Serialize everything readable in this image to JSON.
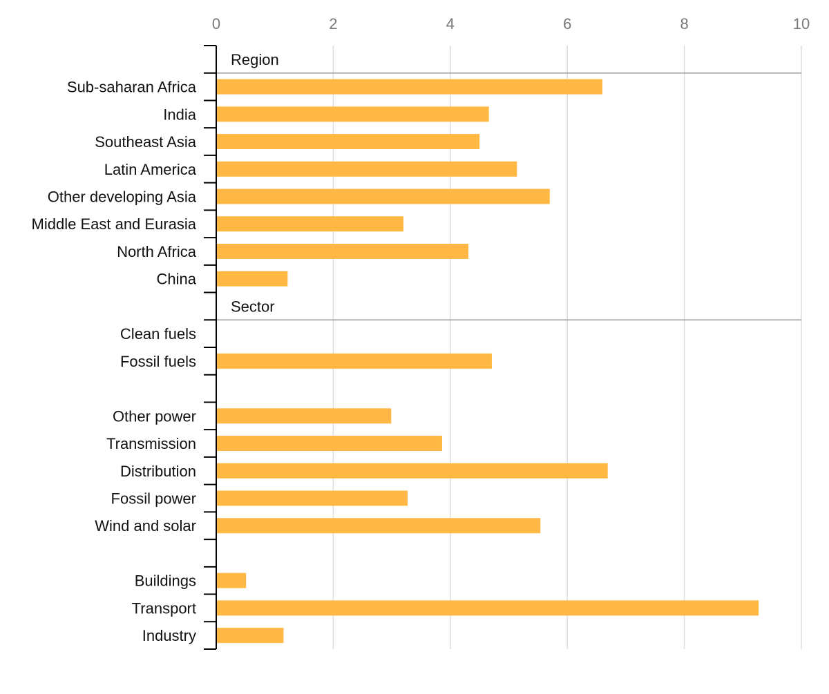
{
  "chart_data": {
    "type": "bar",
    "orientation": "horizontal",
    "title": "",
    "xlabel": "",
    "ylabel": "",
    "xlim": [
      0,
      10
    ],
    "x_ticks": [
      0,
      2,
      4,
      6,
      8,
      10
    ],
    "grid": true,
    "bar_color": "#FFB844",
    "rows": [
      {
        "kind": "header",
        "label": "Region"
      },
      {
        "kind": "bar",
        "label": "Sub-saharan Africa",
        "value": 6.6
      },
      {
        "kind": "bar",
        "label": "India",
        "value": 4.66
      },
      {
        "kind": "bar",
        "label": "Southeast Asia",
        "value": 4.5
      },
      {
        "kind": "bar",
        "label": "Latin America",
        "value": 5.14
      },
      {
        "kind": "bar",
        "label": "Other developing Asia",
        "value": 5.7
      },
      {
        "kind": "bar",
        "label": "Middle East and Eurasia",
        "value": 3.2
      },
      {
        "kind": "bar",
        "label": "North Africa",
        "value": 4.31
      },
      {
        "kind": "bar",
        "label": "China",
        "value": 1.22
      },
      {
        "kind": "header",
        "label": "Sector"
      },
      {
        "kind": "bar",
        "label": "Clean fuels",
        "value": 0
      },
      {
        "kind": "bar",
        "label": "Fossil fuels",
        "value": 4.71
      },
      {
        "kind": "blank"
      },
      {
        "kind": "bar",
        "label": "Other power",
        "value": 2.99
      },
      {
        "kind": "bar",
        "label": "Transmission",
        "value": 3.86
      },
      {
        "kind": "bar",
        "label": "Distribution",
        "value": 6.69
      },
      {
        "kind": "bar",
        "label": "Fossil power",
        "value": 3.27
      },
      {
        "kind": "bar",
        "label": "Wind and solar",
        "value": 5.54
      },
      {
        "kind": "blank"
      },
      {
        "kind": "bar",
        "label": "Buildings",
        "value": 0.51
      },
      {
        "kind": "bar",
        "label": "Transport",
        "value": 9.27
      },
      {
        "kind": "bar",
        "label": "Industry",
        "value": 1.15
      }
    ]
  }
}
